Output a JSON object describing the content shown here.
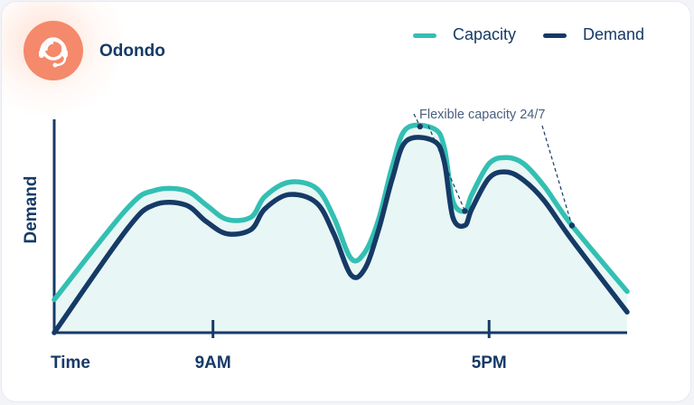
{
  "brand": {
    "name": "Odondo",
    "logo_icon": "headset-agent-icon",
    "logo_color": "#f4896b"
  },
  "colors": {
    "capacity": "#33bfb3",
    "demand": "#163a66",
    "fill": "#e8f7f5",
    "axis": "#163a66"
  },
  "chart_data": {
    "type": "line",
    "title": "",
    "xlabel": "Time",
    "ylabel": "Demand",
    "x_ticks": [
      {
        "label": "9AM",
        "x": 9
      },
      {
        "label": "5PM",
        "x": 17
      }
    ],
    "xlim": [
      4.4,
      21.0
    ],
    "ylim": [
      0,
      100
    ],
    "grid": false,
    "legend": "top-right",
    "series": [
      {
        "name": "Capacity",
        "color": "#33bfb3",
        "points": [
          [
            4.4,
            16
          ],
          [
            6.5,
            60
          ],
          [
            7.3,
            69
          ],
          [
            8.2,
            69
          ],
          [
            8.8,
            62
          ],
          [
            9.4,
            55
          ],
          [
            10.1,
            56
          ],
          [
            10.5,
            66
          ],
          [
            11.2,
            73
          ],
          [
            12.0,
            70
          ],
          [
            12.5,
            56
          ],
          [
            13.0,
            36
          ],
          [
            13.4,
            39
          ],
          [
            13.8,
            55
          ],
          [
            14.2,
            81
          ],
          [
            14.6,
            99
          ],
          [
            15.4,
            99
          ],
          [
            15.7,
            90
          ],
          [
            15.95,
            64
          ],
          [
            16.3,
            59
          ],
          [
            16.5,
            67
          ],
          [
            17.0,
            82
          ],
          [
            17.5,
            85
          ],
          [
            18.0,
            82
          ],
          [
            18.6,
            71
          ],
          [
            19.4,
            52
          ],
          [
            21.0,
            20
          ]
        ]
      },
      {
        "name": "Demand",
        "color": "#163a66",
        "points": [
          [
            4.4,
            0
          ],
          [
            6.5,
            50
          ],
          [
            7.3,
            62
          ],
          [
            8.2,
            62
          ],
          [
            8.8,
            54
          ],
          [
            9.4,
            48
          ],
          [
            10.1,
            50
          ],
          [
            10.5,
            60
          ],
          [
            11.2,
            67
          ],
          [
            12.0,
            63
          ],
          [
            12.5,
            48
          ],
          [
            13.0,
            28
          ],
          [
            13.4,
            31
          ],
          [
            13.8,
            50
          ],
          [
            14.2,
            75
          ],
          [
            14.6,
            93
          ],
          [
            15.4,
            93
          ],
          [
            15.7,
            83
          ],
          [
            15.95,
            56
          ],
          [
            16.3,
            52
          ],
          [
            16.5,
            60
          ],
          [
            17.0,
            75
          ],
          [
            17.5,
            78
          ],
          [
            18.0,
            74
          ],
          [
            18.6,
            64
          ],
          [
            19.4,
            45
          ],
          [
            21.0,
            10
          ]
        ]
      }
    ],
    "annotations": [
      {
        "text": "Flexible capacity 24/7",
        "points": [
          [
            15.0,
            100
          ],
          [
            16.3,
            59
          ],
          [
            19.4,
            52
          ]
        ]
      }
    ]
  }
}
